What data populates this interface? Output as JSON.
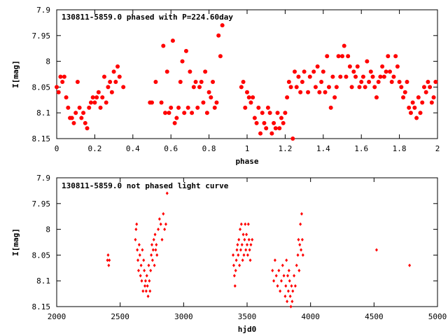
{
  "chart_data": [
    {
      "type": "scatter",
      "title": "130811-5859.0 phased with P=224.60day",
      "xlabel": "phase",
      "ylabel": "I[mag]",
      "xlim": [
        0,
        2
      ],
      "ylim": [
        7.9,
        8.15
      ],
      "y_inverted": true,
      "x_ticks": [
        "0",
        "0.2",
        "0.4",
        "0.6",
        "0.8",
        "1",
        "1.2",
        "1.4",
        "1.6",
        "1.8",
        "2"
      ],
      "y_ticks": [
        "7.9",
        "7.95",
        "8",
        "8.05",
        "8.1",
        "8.15"
      ],
      "grid": false,
      "marker": "filled circle",
      "point_color": "#ff0000",
      "points": [
        [
          0.0,
          8.05
        ],
        [
          0.01,
          8.06
        ],
        [
          0.02,
          8.03
        ],
        [
          0.03,
          8.04
        ],
        [
          0.04,
          8.03
        ],
        [
          0.05,
          8.07
        ],
        [
          0.06,
          8.09
        ],
        [
          0.07,
          8.11
        ],
        [
          0.08,
          8.11
        ],
        [
          0.09,
          8.12
        ],
        [
          0.1,
          8.1
        ],
        [
          0.11,
          8.04
        ],
        [
          0.12,
          8.09
        ],
        [
          0.13,
          8.11
        ],
        [
          0.14,
          8.1
        ],
        [
          0.15,
          8.12
        ],
        [
          0.16,
          8.13
        ],
        [
          0.17,
          8.09
        ],
        [
          0.18,
          8.08
        ],
        [
          0.19,
          8.07
        ],
        [
          0.2,
          8.08
        ],
        [
          0.21,
          8.07
        ],
        [
          0.22,
          8.06
        ],
        [
          0.23,
          8.09
        ],
        [
          0.24,
          8.07
        ],
        [
          0.25,
          8.03
        ],
        [
          0.26,
          8.08
        ],
        [
          0.27,
          8.05
        ],
        [
          0.28,
          8.04
        ],
        [
          0.29,
          8.06
        ],
        [
          0.3,
          8.02
        ],
        [
          0.31,
          8.04
        ],
        [
          0.32,
          8.01
        ],
        [
          0.33,
          8.03
        ],
        [
          0.35,
          8.05
        ],
        [
          0.49,
          8.08
        ],
        [
          0.5,
          8.08
        ],
        [
          0.52,
          8.04
        ],
        [
          0.55,
          8.08
        ],
        [
          0.56,
          7.97
        ],
        [
          0.57,
          8.1
        ],
        [
          0.58,
          8.02
        ],
        [
          0.59,
          8.1
        ],
        [
          0.6,
          8.09
        ],
        [
          0.61,
          7.96
        ],
        [
          0.62,
          8.12
        ],
        [
          0.63,
          8.11
        ],
        [
          0.64,
          8.09
        ],
        [
          0.65,
          8.04
        ],
        [
          0.66,
          8.0
        ],
        [
          0.67,
          8.1
        ],
        [
          0.68,
          7.98
        ],
        [
          0.69,
          8.09
        ],
        [
          0.7,
          8.02
        ],
        [
          0.71,
          8.1
        ],
        [
          0.72,
          8.05
        ],
        [
          0.73,
          8.04
        ],
        [
          0.74,
          8.09
        ],
        [
          0.75,
          8.05
        ],
        [
          0.76,
          8.04
        ],
        [
          0.77,
          8.08
        ],
        [
          0.78,
          8.02
        ],
        [
          0.79,
          8.1
        ],
        [
          0.8,
          8.06
        ],
        [
          0.81,
          8.07
        ],
        [
          0.82,
          8.04
        ],
        [
          0.83,
          8.09
        ],
        [
          0.84,
          8.08
        ],
        [
          0.85,
          7.95
        ],
        [
          0.86,
          7.99
        ],
        [
          0.87,
          7.93
        ],
        [
          0.97,
          8.05
        ],
        [
          0.98,
          8.04
        ],
        [
          0.99,
          8.09
        ],
        [
          1.0,
          8.06
        ],
        [
          1.01,
          8.07
        ],
        [
          1.02,
          8.08
        ],
        [
          1.03,
          8.07
        ],
        [
          1.04,
          8.11
        ],
        [
          1.05,
          8.12
        ],
        [
          1.06,
          8.09
        ],
        [
          1.07,
          8.14
        ],
        [
          1.08,
          8.1
        ],
        [
          1.09,
          8.12
        ],
        [
          1.1,
          8.13
        ],
        [
          1.11,
          8.09
        ],
        [
          1.12,
          8.1
        ],
        [
          1.13,
          8.14
        ],
        [
          1.14,
          8.12
        ],
        [
          1.15,
          8.13
        ],
        [
          1.16,
          8.1
        ],
        [
          1.17,
          8.13
        ],
        [
          1.18,
          8.11
        ],
        [
          1.19,
          8.12
        ],
        [
          1.2,
          8.1
        ],
        [
          1.21,
          8.07
        ],
        [
          1.22,
          8.04
        ],
        [
          1.23,
          8.05
        ],
        [
          1.24,
          8.15
        ],
        [
          1.25,
          8.02
        ],
        [
          1.26,
          8.05
        ],
        [
          1.27,
          8.03
        ],
        [
          1.28,
          8.06
        ],
        [
          1.29,
          8.04
        ],
        [
          1.3,
          8.02
        ],
        [
          1.32,
          8.06
        ],
        [
          1.33,
          8.03
        ],
        [
          1.35,
          8.02
        ],
        [
          1.36,
          8.05
        ],
        [
          1.37,
          8.01
        ],
        [
          1.38,
          8.06
        ],
        [
          1.39,
          8.04
        ],
        [
          1.4,
          8.02
        ],
        [
          1.41,
          8.06
        ],
        [
          1.42,
          7.99
        ],
        [
          1.43,
          8.05
        ],
        [
          1.44,
          8.09
        ],
        [
          1.45,
          8.03
        ],
        [
          1.46,
          8.07
        ],
        [
          1.47,
          8.05
        ],
        [
          1.48,
          7.99
        ],
        [
          1.49,
          8.03
        ],
        [
          1.5,
          7.99
        ],
        [
          1.51,
          7.97
        ],
        [
          1.52,
          8.03
        ],
        [
          1.53,
          7.99
        ],
        [
          1.54,
          8.01
        ],
        [
          1.55,
          8.05
        ],
        [
          1.56,
          8.02
        ],
        [
          1.57,
          8.03
        ],
        [
          1.58,
          8.01
        ],
        [
          1.59,
          8.05
        ],
        [
          1.6,
          8.04
        ],
        [
          1.61,
          8.03
        ],
        [
          1.62,
          8.05
        ],
        [
          1.63,
          8.0
        ],
        [
          1.64,
          8.04
        ],
        [
          1.65,
          8.02
        ],
        [
          1.66,
          8.03
        ],
        [
          1.67,
          8.05
        ],
        [
          1.68,
          8.07
        ],
        [
          1.69,
          8.04
        ],
        [
          1.7,
          8.03
        ],
        [
          1.71,
          8.01
        ],
        [
          1.72,
          8.03
        ],
        [
          1.73,
          8.02
        ],
        [
          1.74,
          7.99
        ],
        [
          1.75,
          8.02
        ],
        [
          1.76,
          8.04
        ],
        [
          1.77,
          8.03
        ],
        [
          1.78,
          7.99
        ],
        [
          1.79,
          8.01
        ],
        [
          1.8,
          8.04
        ],
        [
          1.81,
          8.05
        ],
        [
          1.82,
          8.07
        ],
        [
          1.83,
          8.06
        ],
        [
          1.84,
          8.04
        ],
        [
          1.85,
          8.09
        ],
        [
          1.86,
          8.1
        ],
        [
          1.87,
          8.08
        ],
        [
          1.88,
          8.09
        ],
        [
          1.89,
          8.11
        ],
        [
          1.9,
          8.07
        ],
        [
          1.91,
          8.1
        ],
        [
          1.92,
          8.08
        ],
        [
          1.93,
          8.05
        ],
        [
          1.94,
          8.06
        ],
        [
          1.95,
          8.04
        ],
        [
          1.96,
          8.05
        ],
        [
          1.97,
          8.08
        ],
        [
          1.98,
          8.07
        ],
        [
          1.99,
          8.04
        ]
      ]
    },
    {
      "type": "scatter",
      "title": "130811-5859.0 not phased light curve",
      "xlabel": "hjd0",
      "ylabel": "I[mag]",
      "xlim": [
        2000,
        5000
      ],
      "ylim": [
        7.9,
        8.15
      ],
      "y_inverted": true,
      "x_ticks": [
        "2000",
        "2500",
        "3000",
        "3500",
        "4000",
        "4500",
        "5000"
      ],
      "y_ticks": [
        "7.9",
        "7.95",
        "8",
        "8.05",
        "8.1",
        "8.15"
      ],
      "grid": false,
      "marker": "small diamond",
      "point_color": "#ff0000",
      "points": [
        [
          2400,
          8.06
        ],
        [
          2405,
          8.05
        ],
        [
          2410,
          8.07
        ],
        [
          2415,
          8.06
        ],
        [
          2620,
          8.02
        ],
        [
          2625,
          8.0
        ],
        [
          2630,
          7.99
        ],
        [
          2635,
          8.04
        ],
        [
          2640,
          8.06
        ],
        [
          2645,
          8.08
        ],
        [
          2650,
          8.03
        ],
        [
          2655,
          8.05
        ],
        [
          2660,
          8.09
        ],
        [
          2665,
          8.07
        ],
        [
          2670,
          8.1
        ],
        [
          2675,
          8.04
        ],
        [
          2680,
          8.12
        ],
        [
          2685,
          8.06
        ],
        [
          2690,
          8.08
        ],
        [
          2695,
          8.11
        ],
        [
          2700,
          8.1
        ],
        [
          2705,
          8.12
        ],
        [
          2710,
          8.09
        ],
        [
          2715,
          8.11
        ],
        [
          2720,
          8.13
        ],
        [
          2725,
          8.07
        ],
        [
          2730,
          8.1
        ],
        [
          2735,
          8.12
        ],
        [
          2740,
          8.08
        ],
        [
          2745,
          8.05
        ],
        [
          2750,
          8.03
        ],
        [
          2755,
          8.06
        ],
        [
          2760,
          8.04
        ],
        [
          2765,
          8.02
        ],
        [
          2770,
          8.07
        ],
        [
          2775,
          8.01
        ],
        [
          2780,
          8.04
        ],
        [
          2785,
          8.03
        ],
        [
          2790,
          8.05
        ],
        [
          2800,
          8.0
        ],
        [
          2810,
          7.98
        ],
        [
          2820,
          7.99
        ],
        [
          2830,
          8.02
        ],
        [
          2840,
          7.97
        ],
        [
          2850,
          8.0
        ],
        [
          2860,
          7.99
        ],
        [
          2870,
          7.93
        ],
        [
          3390,
          8.05
        ],
        [
          3395,
          8.07
        ],
        [
          3400,
          8.09
        ],
        [
          3405,
          8.11
        ],
        [
          3410,
          8.08
        ],
        [
          3415,
          8.06
        ],
        [
          3420,
          8.04
        ],
        [
          3425,
          8.03
        ],
        [
          3430,
          8.05
        ],
        [
          3435,
          8.02
        ],
        [
          3440,
          8.07
        ],
        [
          3445,
          8.0
        ],
        [
          3450,
          8.04
        ],
        [
          3455,
          7.99
        ],
        [
          3460,
          8.03
        ],
        [
          3465,
          8.06
        ],
        [
          3470,
          8.01
        ],
        [
          3475,
          8.05
        ],
        [
          3480,
          8.02
        ],
        [
          3485,
          7.99
        ],
        [
          3490,
          8.04
        ],
        [
          3495,
          8.01
        ],
        [
          3500,
          8.03
        ],
        [
          3505,
          8.05
        ],
        [
          3510,
          7.99
        ],
        [
          3515,
          8.02
        ],
        [
          3520,
          8.04
        ],
        [
          3525,
          8.06
        ],
        [
          3530,
          8.03
        ],
        [
          3540,
          8.02
        ],
        [
          3700,
          8.08
        ],
        [
          3710,
          8.1
        ],
        [
          3720,
          8.06
        ],
        [
          3730,
          8.09
        ],
        [
          3740,
          8.11
        ],
        [
          3750,
          8.08
        ],
        [
          3760,
          8.12
        ],
        [
          3770,
          8.1
        ],
        [
          3780,
          8.07
        ],
        [
          3790,
          8.09
        ],
        [
          3800,
          8.13
        ],
        [
          3805,
          8.11
        ],
        [
          3810,
          8.06
        ],
        [
          3815,
          8.14
        ],
        [
          3820,
          8.09
        ],
        [
          3825,
          8.12
        ],
        [
          3830,
          8.08
        ],
        [
          3835,
          8.1
        ],
        [
          3840,
          8.13
        ],
        [
          3845,
          8.15
        ],
        [
          3850,
          8.11
        ],
        [
          3855,
          8.14
        ],
        [
          3860,
          8.12
        ],
        [
          3870,
          8.09
        ],
        [
          3880,
          8.11
        ],
        [
          3890,
          8.07
        ],
        [
          3900,
          8.05
        ],
        [
          3905,
          8.02
        ],
        [
          3910,
          8.08
        ],
        [
          3915,
          8.03
        ],
        [
          3920,
          7.99
        ],
        [
          3925,
          8.04
        ],
        [
          3930,
          7.97
        ],
        [
          3935,
          8.02
        ],
        [
          3940,
          8.05
        ],
        [
          4520,
          8.04
        ],
        [
          4780,
          8.07
        ]
      ]
    }
  ]
}
